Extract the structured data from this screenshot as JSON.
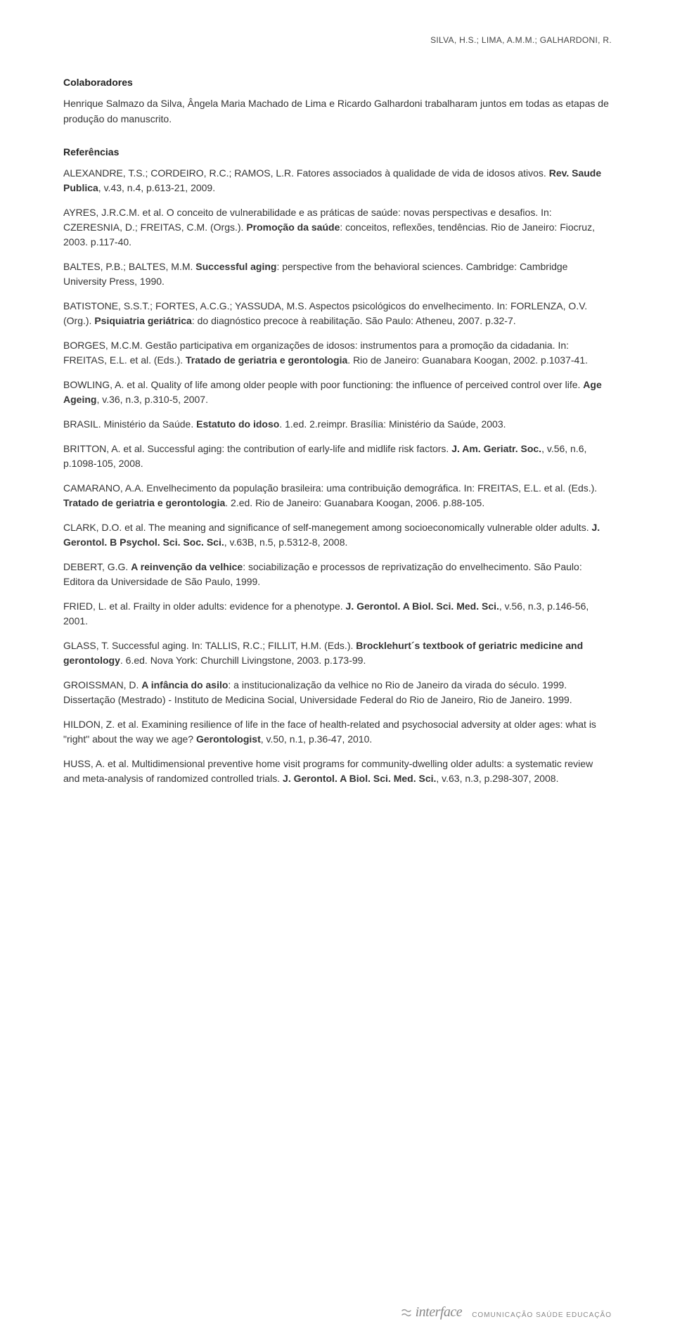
{
  "header": {
    "running_title": "SILVA, H.S.; LIMA, A.M.M.; GALHARDONI, R."
  },
  "collaborators": {
    "heading": "Colaboradores",
    "text": "Henrique Salmazo da Silva, Ângela Maria Machado de Lima e Ricardo Galhardoni trabalharam juntos em todas as etapas de produção do manuscrito."
  },
  "references": {
    "heading": "Referências",
    "items": [
      {
        "pre": "ALEXANDRE, T.S.; CORDEIRO, R.C.; RAMOS, L.R. Fatores associados à qualidade de vida de idosos ativos. ",
        "bold": "Rev. Saude Publica",
        "post": ", v.43, n.4, p.613-21, 2009."
      },
      {
        "pre": "AYRES, J.R.C.M. et al. O conceito de vulnerabilidade e as práticas de saúde: novas perspectivas e desafios. In: CZERESNIA, D.; FREITAS, C.M. (Orgs.). ",
        "bold": "Promoção da saúde",
        "post": ": conceitos, reflexões, tendências. Rio de Janeiro: Fiocruz, 2003. p.117-40."
      },
      {
        "pre": "BALTES, P.B.; BALTES, M.M. ",
        "bold": "Successful aging",
        "post": ": perspective from the behavioral sciences. Cambridge: Cambridge University Press, 1990."
      },
      {
        "pre": "BATISTONE, S.S.T.; FORTES, A.C.G.; YASSUDA, M.S. Aspectos psicológicos do envelhecimento. In: FORLENZA, O.V. (Org.). ",
        "bold": "Psiquiatria geriátrica",
        "post": ": do diagnóstico precoce à reabilitação. São Paulo: Atheneu, 2007. p.32-7."
      },
      {
        "pre": "BORGES, M.C.M. Gestão participativa em organizações de idosos: instrumentos para a promoção da cidadania. In: FREITAS, E.L. et al. (Eds.). ",
        "bold": "Tratado de geriatria e gerontologia",
        "post": ". Rio de Janeiro: Guanabara Koogan, 2002. p.1037-41."
      },
      {
        "pre": "BOWLING, A. et al. Quality of life among older people with poor functioning: the influence of perceived control over life. ",
        "bold": "Age Ageing",
        "post": ", v.36, n.3, p.310-5, 2007."
      },
      {
        "pre": "BRASIL. Ministério da Saúde. ",
        "bold": "Estatuto do idoso",
        "post": ". 1.ed. 2.reimpr. Brasília: Ministério da Saúde, 2003."
      },
      {
        "pre": "BRITTON, A. et al. Successful aging: the contribution of early-life and midlife risk factors. ",
        "bold": "J. Am. Geriatr. Soc.",
        "post": ", v.56, n.6, p.1098-105, 2008."
      },
      {
        "pre": "CAMARANO, A.A. Envelhecimento da população brasileira: uma contribuição demográfica. In: FREITAS, E.L. et al. (Eds.). ",
        "bold": "Tratado de geriatria e gerontologia",
        "post": ". 2.ed. Rio de Janeiro: Guanabara Koogan, 2006. p.88-105."
      },
      {
        "pre": "CLARK, D.O. et al. The meaning and significance of self-manegement among socioeconomically vulnerable older adults. ",
        "bold": "J. Gerontol. B Psychol. Sci. Soc. Sci.",
        "post": ", v.63B, n.5, p.5312-8, 2008."
      },
      {
        "pre": "DEBERT, G.G. ",
        "bold": "A reinvenção da velhice",
        "post": ": sociabilização e processos de reprivatização do envelhecimento. São Paulo: Editora da Universidade de São Paulo, 1999."
      },
      {
        "pre": "FRIED, L. et al. Frailty in older adults: evidence for a phenotype. ",
        "bold": "J. Gerontol. A Biol. Sci. Med. Sci.",
        "post": ", v.56, n.3, p.146-56, 2001."
      },
      {
        "pre": "GLASS, T. Successful aging. In: TALLIS, R.C.; FILLIT, H.M. (Eds.). ",
        "bold": "Brocklehurt´s textbook of geriatric medicine and gerontology",
        "post": ". 6.ed. Nova York: Churchill Livingstone, 2003. p.173-99."
      },
      {
        "pre": "GROISSMAN, D. ",
        "bold": "A infância do asilo",
        "post": ": a institucionalização da velhice no Rio de Janeiro da virada do século. 1999. Dissertação (Mestrado) - Instituto de Medicina Social, Universidade Federal do Rio de Janeiro, Rio de Janeiro. 1999."
      },
      {
        "pre": "HILDON, Z. et al. Examining resilience of life in the face of health-related and psychosocial adversity at older ages: what is \"right\" about the way we age? ",
        "bold": "Gerontologist",
        "post": ", v.50, n.1, p.36-47, 2010."
      },
      {
        "pre": "HUSS, A. et al. Multidimensional preventive home visit programs for community-dwelling older adults: a systematic review and meta-analysis of randomized controlled trials. ",
        "bold": "J. Gerontol. A Biol. Sci. Med. Sci.",
        "post": ", v.63, n.3, p.298-307, 2008."
      }
    ]
  },
  "footer": {
    "brand": "interface",
    "tagline": "COMUNICAÇÃO SAÚDE EDUCAÇÃO",
    "icon_color": "#999999"
  },
  "styling": {
    "page_bg": "#ffffff",
    "text_color": "#333333",
    "body_fontsize": 14,
    "heading_fontsize": 14,
    "running_header_fontsize": 12,
    "footer_brand_fontsize": 20,
    "footer_tagline_fontsize": 10,
    "line_height": 1.5,
    "font_family": "Verdana, Geneva, sans-serif"
  }
}
